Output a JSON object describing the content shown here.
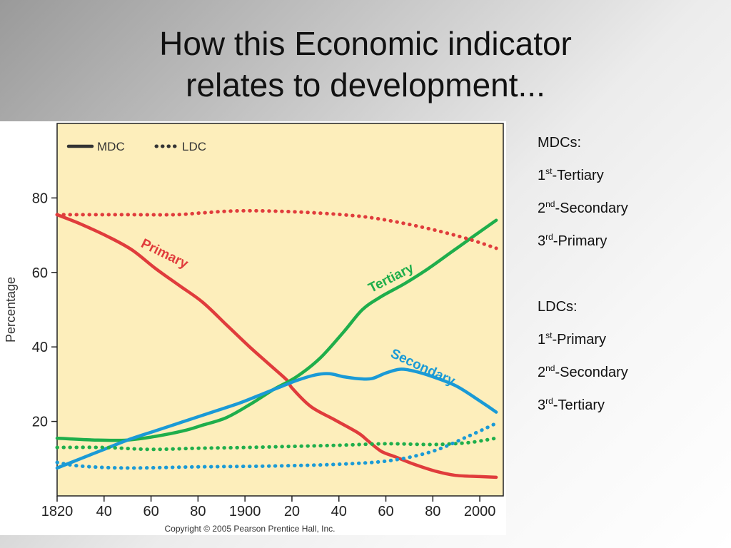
{
  "slide": {
    "title_line1": "How this Economic indicator",
    "title_line2": "relates to development..."
  },
  "notes": {
    "mdc_heading": "MDCs:",
    "mdc_items": [
      {
        "num": "1",
        "sup": "st",
        "text": "-Tertiary"
      },
      {
        "num": "2",
        "sup": "nd",
        "text": "-Secondary"
      },
      {
        "num": "3",
        "sup": "rd",
        "text": "-Primary"
      }
    ],
    "ldc_heading": "LDCs:",
    "ldc_items": [
      {
        "num": "1",
        "sup": "st",
        "text": "-Primary"
      },
      {
        "num": "2",
        "sup": "nd",
        "text": "-Secondary"
      },
      {
        "num": "3",
        "sup": "rd",
        "text": "-Tertiary"
      }
    ]
  },
  "chart_data": {
    "type": "line",
    "ylabel": "Percentage",
    "xlim": [
      1820,
      2010
    ],
    "ylim": [
      0,
      100
    ],
    "x_ticks": [
      {
        "value": 1820,
        "label": "1820"
      },
      {
        "value": 1840,
        "label": "40"
      },
      {
        "value": 1860,
        "label": "60"
      },
      {
        "value": 1880,
        "label": "80"
      },
      {
        "value": 1900,
        "label": "1900"
      },
      {
        "value": 1920,
        "label": "20"
      },
      {
        "value": 1940,
        "label": "40"
      },
      {
        "value": 1960,
        "label": "60"
      },
      {
        "value": 1980,
        "label": "80"
      },
      {
        "value": 2000,
        "label": "2000"
      }
    ],
    "y_ticks": [
      {
        "value": 20,
        "label": "20"
      },
      {
        "value": 40,
        "label": "40"
      },
      {
        "value": 60,
        "label": "60"
      },
      {
        "value": 80,
        "label": "80"
      }
    ],
    "grid": false,
    "legend": {
      "placement": "top-left",
      "entries": [
        {
          "label": "MDC",
          "style": "solid"
        },
        {
          "label": "LDC",
          "style": "dotted"
        }
      ]
    },
    "colors": {
      "primary": "#e03c3c",
      "secondary": "#1a9ad6",
      "tertiary": "#1fae4b",
      "plot_background": "#fdeebb"
    },
    "series": [
      {
        "key": "mdc-primary",
        "group": "MDC",
        "sector": "primary",
        "style": "solid",
        "x": [
          1820,
          1830,
          1842,
          1852,
          1862,
          1872,
          1882,
          1892,
          1902,
          1910,
          1918,
          1920,
          1928,
          1938,
          1948,
          1952,
          1958,
          1964,
          1972,
          1982,
          1990,
          2000,
          2007
        ],
        "y": [
          75.5,
          73,
          69.5,
          66,
          61,
          56.5,
          52,
          46,
          40,
          35.5,
          31,
          29,
          24,
          20.5,
          17,
          15,
          12,
          10.5,
          8.5,
          6.5,
          5.5,
          5.2,
          5
        ]
      },
      {
        "key": "mdc-tertiary",
        "group": "MDC",
        "sector": "tertiary",
        "style": "solid",
        "x": [
          1820,
          1836,
          1850,
          1862,
          1874,
          1882,
          1892,
          1902,
          1912,
          1922,
          1932,
          1942,
          1950,
          1958,
          1968,
          1978,
          1988,
          1998,
          2007
        ],
        "y": [
          15.5,
          15,
          15,
          16,
          17.5,
          19,
          21,
          24.5,
          28.5,
          32,
          37,
          44,
          50,
          53.5,
          57,
          61,
          65.5,
          70,
          74
        ]
      },
      {
        "key": "mdc-secondary",
        "group": "MDC",
        "sector": "secondary",
        "style": "solid",
        "x": [
          1820,
          1830,
          1840,
          1850,
          1862,
          1874,
          1886,
          1898,
          1908,
          1916,
          1922,
          1930,
          1936,
          1942,
          1948,
          1954,
          1960,
          1966,
          1972,
          1980,
          1990,
          2000,
          2007
        ],
        "y": [
          7.5,
          10,
          12.5,
          15,
          17.5,
          20,
          22.5,
          25,
          27.5,
          29.5,
          31,
          32.5,
          32.8,
          32,
          31.5,
          31.5,
          33,
          34,
          33.5,
          32,
          29.5,
          25.5,
          22.5
        ]
      },
      {
        "key": "ldc-primary",
        "group": "LDC",
        "sector": "primary",
        "style": "dotted",
        "x": [
          1820,
          1850,
          1870,
          1882,
          1895,
          1910,
          1930,
          1950,
          1965,
          1980,
          1995,
          2007
        ],
        "y": [
          75.5,
          75.5,
          75.5,
          76,
          76.5,
          76.5,
          76,
          75,
          73.5,
          71.5,
          69,
          66.5
        ]
      },
      {
        "key": "ldc-tertiary",
        "group": "LDC",
        "sector": "tertiary",
        "style": "dotted",
        "x": [
          1820,
          1840,
          1860,
          1880,
          1900,
          1920,
          1940,
          1960,
          1980,
          1995,
          2007
        ],
        "y": [
          13,
          13,
          12.5,
          12.8,
          13,
          13.3,
          13.6,
          14,
          13.8,
          14.3,
          15.5
        ]
      },
      {
        "key": "ldc-secondary",
        "group": "LDC",
        "sector": "secondary",
        "style": "dotted",
        "x": [
          1820,
          1830,
          1850,
          1880,
          1910,
          1940,
          1962,
          1980,
          1995,
          2007
        ],
        "y": [
          9,
          8,
          7.5,
          7.8,
          8,
          8.5,
          9.5,
          12,
          16,
          19.5
        ]
      }
    ],
    "annotations": [
      {
        "key": "primary-label",
        "text": "Primary",
        "sector": "primary",
        "x": 1865,
        "y": 64,
        "angle": 26
      },
      {
        "key": "tertiary-label",
        "text": "Tertiary",
        "sector": "tertiary",
        "x": 1963,
        "y": 57.5,
        "angle": -27
      },
      {
        "key": "secondary-label",
        "text": "Secondary",
        "sector": "secondary",
        "x": 1975,
        "y": 33.5,
        "angle": 25
      }
    ],
    "credit": "Copyright © 2005 Pearson Prentice Hall, Inc."
  }
}
